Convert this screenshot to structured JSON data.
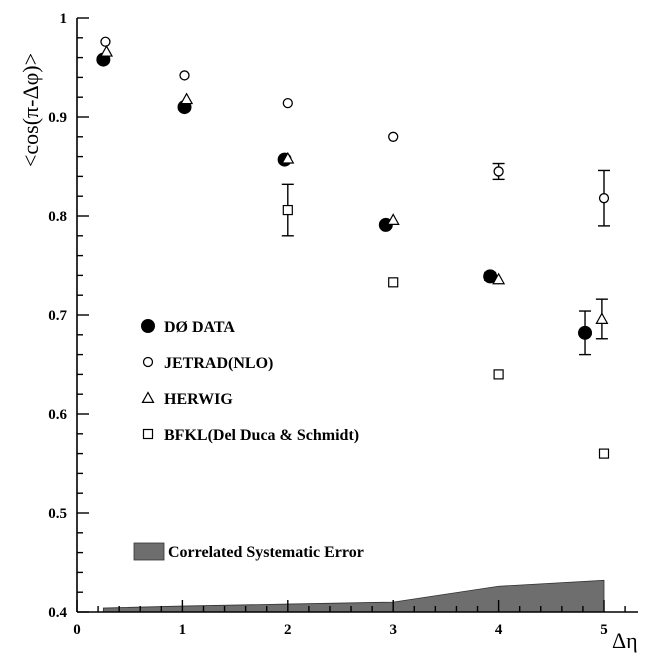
{
  "chart_data": {
    "type": "scatter",
    "xlabel": "Δη",
    "ylabel": "<cos(π-Δφ)>",
    "xlim": [
      0,
      5.5
    ],
    "ylim": [
      0.4,
      1.0
    ],
    "x_ticks": [
      "0",
      "1",
      "2",
      "3",
      "4",
      "5"
    ],
    "y_ticks": [
      "0.4",
      "0.5",
      "0.6",
      "0.7",
      "0.8",
      "0.9",
      "1"
    ],
    "legend_placement": "center-left",
    "series": [
      {
        "name": "DØ DATA",
        "marker": "filled-circle",
        "color": "#000000",
        "points": [
          {
            "x": 0.25,
            "y": 0.958,
            "err": 0.003
          },
          {
            "x": 1.02,
            "y": 0.91,
            "err": 0.003
          },
          {
            "x": 1.97,
            "y": 0.857,
            "err": 0.003
          },
          {
            "x": 2.93,
            "y": 0.791,
            "err": 0.003
          },
          {
            "x": 3.92,
            "y": 0.739,
            "err": 0.004
          },
          {
            "x": 4.82,
            "y": 0.682,
            "err": 0.022
          }
        ]
      },
      {
        "name": "JETRAD(NLO)",
        "marker": "open-circle",
        "color": "#000000",
        "points": [
          {
            "x": 0.27,
            "y": 0.976,
            "err": 0
          },
          {
            "x": 1.02,
            "y": 0.942,
            "err": 0
          },
          {
            "x": 2.0,
            "y": 0.914,
            "err": 0
          },
          {
            "x": 3.0,
            "y": 0.88,
            "err": 0
          },
          {
            "x": 4.0,
            "y": 0.845,
            "err": 0.008
          },
          {
            "x": 5.0,
            "y": 0.818,
            "err": 0.028
          }
        ]
      },
      {
        "name": "HERWIG",
        "marker": "open-triangle",
        "color": "#000000",
        "points": [
          {
            "x": 0.28,
            "y": 0.966,
            "err": 0
          },
          {
            "x": 1.04,
            "y": 0.918,
            "err": 0
          },
          {
            "x": 2.0,
            "y": 0.858,
            "err": 0
          },
          {
            "x": 3.0,
            "y": 0.796,
            "err": 0
          },
          {
            "x": 4.0,
            "y": 0.736,
            "err": 0
          },
          {
            "x": 4.98,
            "y": 0.696,
            "err": 0.02
          }
        ]
      },
      {
        "name": "BFKL(Del Duca & Schmidt)",
        "marker": "open-square",
        "color": "#000000",
        "points": [
          {
            "x": 2.0,
            "y": 0.806,
            "err": 0.026
          },
          {
            "x": 3.0,
            "y": 0.733,
            "err": 0
          },
          {
            "x": 4.0,
            "y": 0.64,
            "err": 0
          },
          {
            "x": 5.0,
            "y": 0.56,
            "err": 0
          }
        ]
      }
    ],
    "band": {
      "name": "Correlated Systematic Error",
      "color": "#6e6e6e",
      "points": [
        {
          "x": 0.25,
          "y": 0.404
        },
        {
          "x": 1.0,
          "y": 0.406
        },
        {
          "x": 2.0,
          "y": 0.408
        },
        {
          "x": 3.0,
          "y": 0.41
        },
        {
          "x": 4.0,
          "y": 0.426
        },
        {
          "x": 5.0,
          "y": 0.432
        }
      ]
    }
  }
}
